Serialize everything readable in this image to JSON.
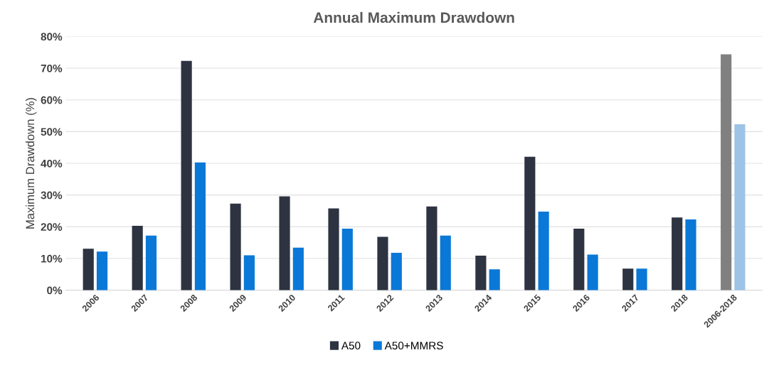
{
  "chart_data": {
    "type": "bar",
    "title": "Annual Maximum Drawdown",
    "ylabel": "Maximum Drawdown (%)",
    "categories": [
      "2006",
      "2007",
      "2008",
      "2009",
      "2010",
      "2011",
      "2012",
      "2013",
      "2014",
      "2015",
      "2016",
      "2017",
      "2018",
      "2006-2018"
    ],
    "series": [
      {
        "name": "A50",
        "color": "#2d3340",
        "colors": [
          "#2d3340",
          "#2d3340",
          "#2d3340",
          "#2d3340",
          "#2d3340",
          "#2d3340",
          "#2d3340",
          "#2d3340",
          "#2d3340",
          "#2d3340",
          "#2d3340",
          "#2d3340",
          "#2d3340",
          "#808080"
        ],
        "values": [
          13.1,
          20.3,
          72.3,
          27.3,
          29.6,
          25.8,
          16.8,
          26.4,
          10.9,
          42.1,
          19.4,
          6.8,
          22.9,
          74.4
        ]
      },
      {
        "name": "A50+MMRS",
        "color": "#0a78d7",
        "colors": [
          "#0a78d7",
          "#0a78d7",
          "#0a78d7",
          "#0a78d7",
          "#0a78d7",
          "#0a78d7",
          "#0a78d7",
          "#0a78d7",
          "#0a78d7",
          "#0a78d7",
          "#0a78d7",
          "#0a78d7",
          "#0a78d7",
          "#9dc3e6"
        ],
        "values": [
          12.2,
          17.2,
          40.3,
          11.0,
          13.4,
          19.4,
          11.8,
          17.2,
          6.6,
          24.8,
          11.2,
          6.8,
          22.3,
          52.3
        ]
      }
    ],
    "ylim": [
      0,
      80
    ],
    "yticks": [
      {
        "value": 0,
        "label": "0%"
      },
      {
        "value": 10,
        "label": "10%"
      },
      {
        "value": 20,
        "label": "20%"
      },
      {
        "value": 30,
        "label": "30%"
      },
      {
        "value": 40,
        "label": "40%"
      },
      {
        "value": 50,
        "label": "50%"
      },
      {
        "value": 60,
        "label": "60%"
      },
      {
        "value": 70,
        "label": "70%"
      },
      {
        "value": 80,
        "label": "80%"
      }
    ],
    "grid": "y",
    "legend": "bottom"
  }
}
